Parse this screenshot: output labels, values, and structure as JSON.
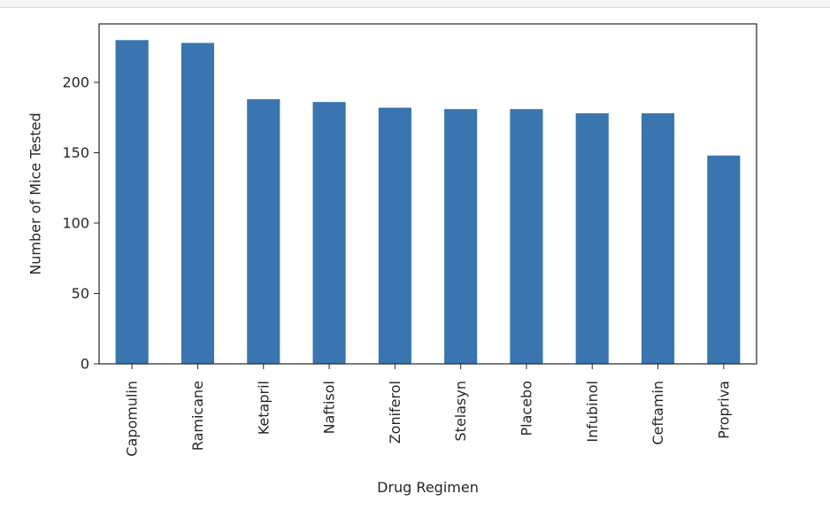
{
  "chart_data": {
    "type": "bar",
    "title": "",
    "xlabel": "Drug Regimen",
    "ylabel": "Number of Mice Tested",
    "categories": [
      "Capomulin",
      "Ramicane",
      "Ketapril",
      "Naftisol",
      "Zoniferol",
      "Stelasyn",
      "Placebo",
      "Infubinol",
      "Ceftamin",
      "Propriva"
    ],
    "values": [
      230,
      228,
      188,
      186,
      182,
      181,
      181,
      178,
      178,
      148
    ],
    "ylim": [
      0,
      241.5
    ],
    "yticks": [
      0,
      50,
      100,
      150,
      200
    ],
    "bar_color": "#3a75b0",
    "grid": false,
    "legend": "none"
  }
}
